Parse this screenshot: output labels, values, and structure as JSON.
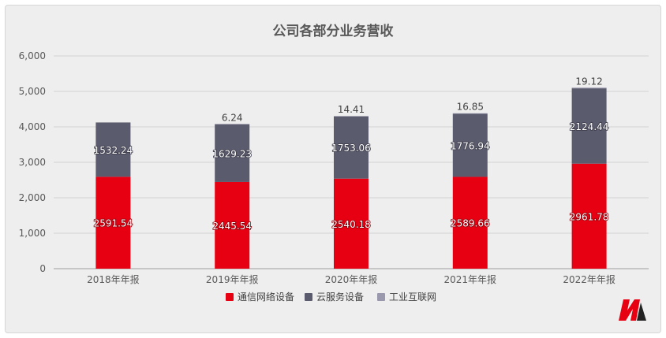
{
  "chart_data": {
    "type": "bar",
    "stacked": true,
    "title": "公司各部分业务营收",
    "xlabel": "",
    "ylabel": "",
    "categories": [
      "2018年年报",
      "2019年年报",
      "2020年年报",
      "2021年年报",
      "2022年年报"
    ],
    "series": [
      {
        "name": "通信网络设备",
        "color": "#e60012",
        "values": [
          2591.54,
          2445.54,
          2540.18,
          2589.66,
          2961.78
        ],
        "labels": [
          "2591.54",
          "2445.54",
          "2540.18",
          "2589.66",
          "2961.78"
        ]
      },
      {
        "name": "云服务设备",
        "color": "#5b5b6e",
        "values": [
          1532.24,
          1629.23,
          1753.06,
          1776.94,
          2124.44
        ],
        "labels": [
          "1532.24",
          "1629.23",
          "1753.06",
          "1776.94",
          "2124.44"
        ]
      },
      {
        "name": "工业互联网",
        "color": "#9a98ad",
        "values": [
          0,
          6.24,
          14.41,
          16.85,
          19.12
        ],
        "labels": [
          "",
          "6.24",
          "14.41",
          "16.85",
          "19.12"
        ]
      }
    ],
    "ylim": [
      0,
      6000
    ],
    "yticks": [
      0,
      1000,
      2000,
      3000,
      4000,
      5000,
      6000
    ],
    "ytick_labels": [
      "0",
      "1,000",
      "2,000",
      "3,000",
      "4,000",
      "5,000",
      "6,000"
    ],
    "grid": true,
    "legend_position": "bottom-center"
  }
}
